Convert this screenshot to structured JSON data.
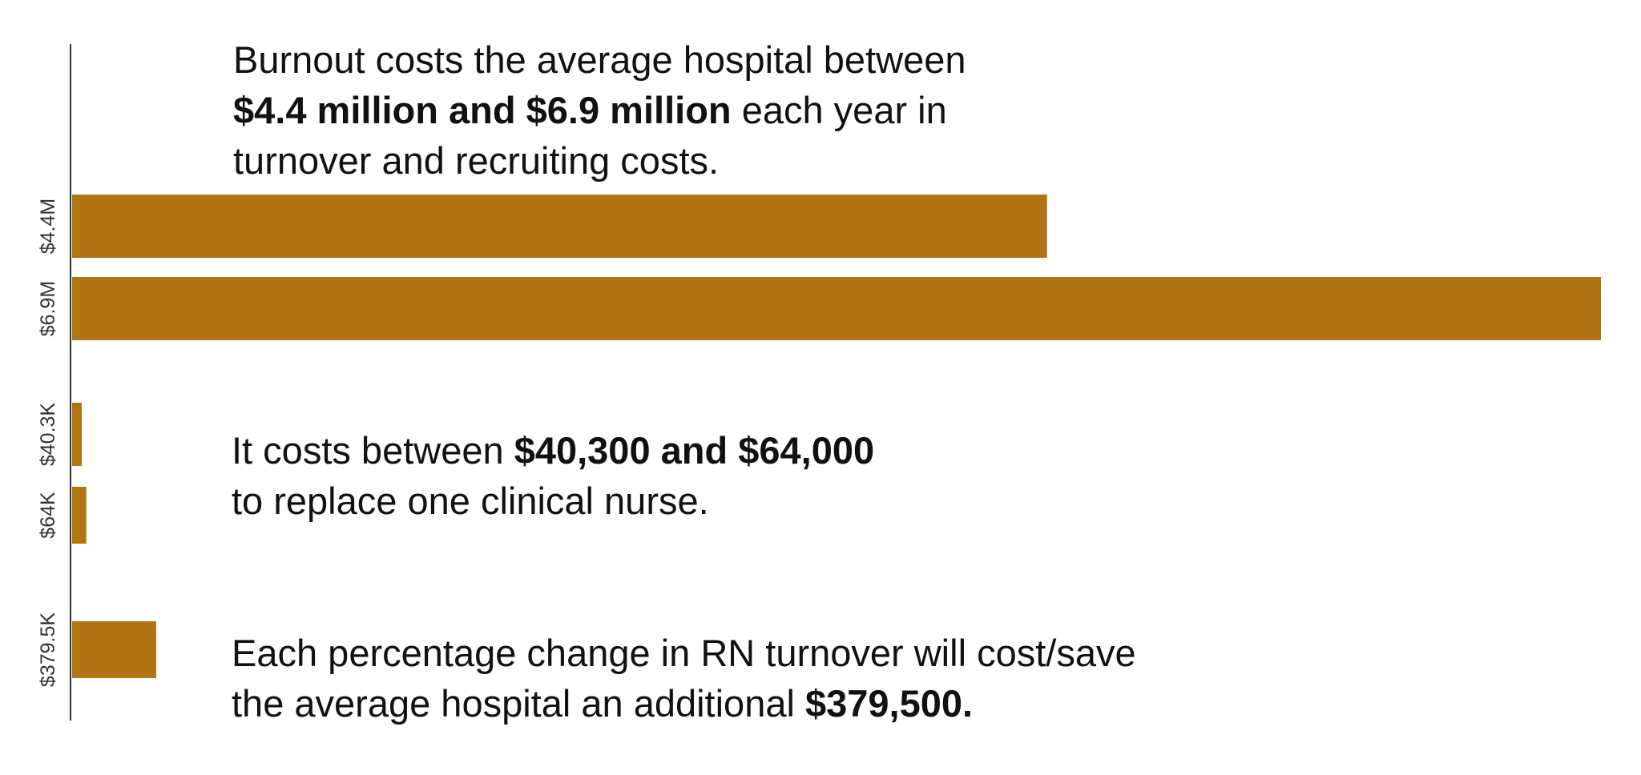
{
  "chart_data": {
    "type": "bar",
    "orientation": "horizontal",
    "categories": [
      "$4.4M",
      "$6.9M",
      "$40.3K",
      "$64K",
      "$379.5K"
    ],
    "values": [
      4400000,
      6900000,
      40300,
      64000,
      379500
    ],
    "xlim": [
      0,
      6900000
    ],
    "bar_color": "#B07412",
    "axis_color": "#333333",
    "grid": false,
    "legend": "none",
    "annotations": [
      {
        "lines": [
          [
            {
              "text": "Burnout costs the average hospital between",
              "bold": false
            }
          ],
          [
            {
              "text": "$4.4 million and $6.9 million",
              "bold": true
            },
            {
              "text": " each year in",
              "bold": false
            }
          ],
          [
            {
              "text": "turnover and recruiting costs.",
              "bold": false
            }
          ]
        ]
      },
      {
        "lines": [
          [
            {
              "text": "It costs between ",
              "bold": false
            },
            {
              "text": "$40,300 and $64,000",
              "bold": true
            }
          ],
          [
            {
              "text": "to replace one clinical nurse.",
              "bold": false
            }
          ]
        ]
      },
      {
        "lines": [
          [
            {
              "text": "Each percentage change in RN turnover will cost/save",
              "bold": false
            }
          ],
          [
            {
              "text": "the average hospital an additional ",
              "bold": false
            },
            {
              "text": "$379,500.",
              "bold": true
            }
          ]
        ]
      }
    ]
  }
}
